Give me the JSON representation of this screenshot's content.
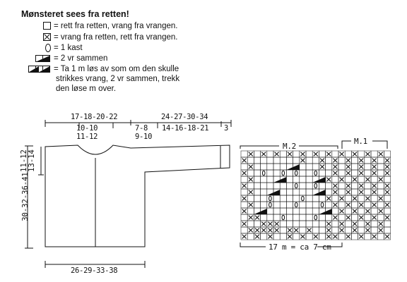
{
  "legend": {
    "title": "Mønsteret sees fra retten!",
    "items": [
      {
        "symbol": "empty-square",
        "text": "= rett fra retten, vrang fra vrangen."
      },
      {
        "symbol": "crossed-square",
        "text": "= vrang fra retten, rett fra vrangen."
      },
      {
        "symbol": "oval",
        "text": "= 1 kast"
      },
      {
        "symbol": "decrease-2",
        "text": "= 2 vr sammen"
      },
      {
        "symbol": "decrease-3",
        "text": "= Ta 1 m løs av som om den skulle",
        "continuation": [
          "strikkes vrang, 2 vr sammen, trekk",
          "den løse m over."
        ]
      }
    ]
  },
  "schematic": {
    "top_body_width": "17-18-20-22",
    "neck_width": "10-10",
    "neck_width_2": "11-12",
    "sleeve_length": "24-27-30-34",
    "sleeve_a": "7-8",
    "sleeve_a_2": "9-10",
    "sleeve_b": "14-16-18-21",
    "cuff": "3",
    "height": "30-32-36-41",
    "armhole": "11-12",
    "armhole_2": "13-14",
    "bottom_width": "26-29-33-38"
  },
  "chart": {
    "label_m2": "M.2",
    "label_m1": "M.1",
    "gauge": "17 m = ca 7 cm",
    "grid": [
      ".X.X.X.X.X.X.X.X.X.X.X.",
      "X........X..X.X.X.X.X.X",
      ".X.....M....X.X.X.X.X.X",
      "X..O..O.O..O..X.X.X.X.X",
      ".X...M.....M.X.X.X.X.X.",
      "X.......O..O..X.X.X.X.X",
      ".X..M......M..X.X.X.X.X",
      "X...O....O...X.X.X.X.X.",
      ".X..O...O...O.X.X.X.X.X",
      "X.M.........M..X.X.X.X.",
      ".XX...O....O..X.X.X.X.X",
      "X..XXX.......X.X.X.X.X.",
      ".XXXXX.XX.X..X.X.X.X.X.",
      "X.X.X..X.X.X.XX.X.X.X.X"
    ]
  },
  "colors": {
    "ink": "#111111",
    "paper": "#ffffff"
  }
}
